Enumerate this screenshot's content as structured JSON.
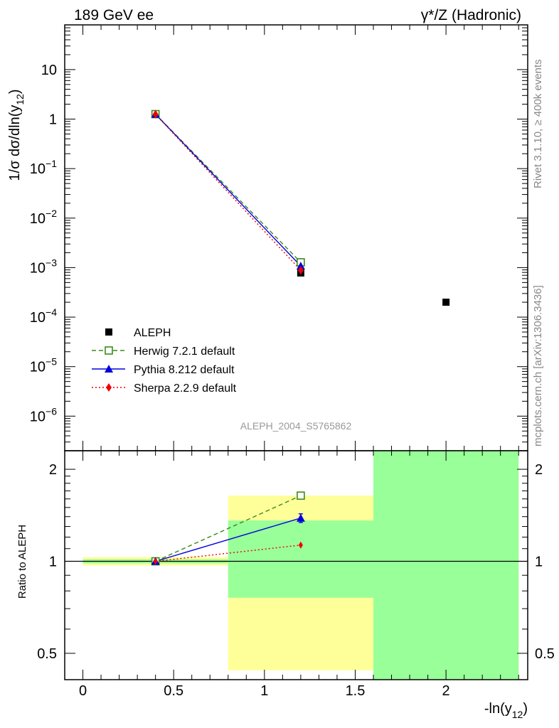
{
  "header": {
    "left": "189 GeV ee",
    "right": "γ*/Z (Hadronic)"
  },
  "side_text": {
    "rivet": "Rivet 3.1.10, ≥ 400k events",
    "mcplots": "mcplots.cern.ch [arXiv:1306.3436]"
  },
  "watermark": "ALEPH_2004_S5765862",
  "colors": {
    "data": "#000000",
    "herwig": "#3a8a1a",
    "pythia": "#0000dd",
    "sherpa": "#ee0000",
    "band_yellow": "#ffff99",
    "band_green": "#99ff99"
  },
  "chart_data": [
    {
      "name": "main",
      "type": "scatter",
      "yscale": "log",
      "ylabel_main": "1/σ  dσ/dln(y",
      "ylabel_sub": "12",
      "ylabel_end": ")",
      "xlim": [
        -0.1,
        2.45
      ],
      "ylim": [
        2e-07,
        80
      ],
      "yticks": [
        {
          "value": 10,
          "base": "10",
          "exp": ""
        },
        {
          "value": 1,
          "base": "1",
          "exp": ""
        },
        {
          "value": 0.1,
          "base": "10",
          "exp": "−1"
        },
        {
          "value": 0.01,
          "base": "10",
          "exp": "−2"
        },
        {
          "value": 0.001,
          "base": "10",
          "exp": "−3"
        },
        {
          "value": 0.0001,
          "base": "10",
          "exp": "−4"
        },
        {
          "value": 1e-05,
          "base": "10",
          "exp": "−5"
        },
        {
          "value": 1e-06,
          "base": "10",
          "exp": "−6"
        }
      ],
      "legend": [
        {
          "key": "data",
          "label": "ALEPH",
          "marker": "square-filled"
        },
        {
          "key": "herwig",
          "label": "Herwig 7.2.1 default",
          "marker": "square-open",
          "dash": "dashed"
        },
        {
          "key": "pythia",
          "label": "Pythia 8.212 default",
          "marker": "triangle",
          "dash": "solid"
        },
        {
          "key": "sherpa",
          "label": "Sherpa 2.2.9 default",
          "marker": "diamond",
          "dash": "dotted"
        }
      ],
      "series": [
        {
          "key": "data",
          "x": [
            0.4,
            1.2,
            2.0
          ],
          "y": [
            1.25,
            0.00078,
            0.0002
          ]
        },
        {
          "key": "herwig",
          "x": [
            0.4,
            1.2
          ],
          "y": [
            1.26,
            0.00128
          ]
        },
        {
          "key": "pythia",
          "x": [
            0.4,
            1.2
          ],
          "y": [
            1.255,
            0.00108
          ]
        },
        {
          "key": "sherpa",
          "x": [
            0.4,
            1.2
          ],
          "y": [
            1.25,
            0.00088
          ]
        }
      ]
    },
    {
      "name": "ratio",
      "type": "scatter",
      "yscale": "log",
      "ylabel": "Ratio to ALEPH",
      "xlabel_main": "-ln(y",
      "xlabel_sub": "12",
      "xlabel_end": ")",
      "xlim": [
        -0.1,
        2.45
      ],
      "ylim": [
        0.41,
        2.3
      ],
      "xticks": [
        {
          "value": 0,
          "label": "0"
        },
        {
          "value": 0.5,
          "label": "0.5"
        },
        {
          "value": 1,
          "label": "1"
        },
        {
          "value": 1.5,
          "label": "1.5"
        },
        {
          "value": 2,
          "label": "2"
        }
      ],
      "yticks": [
        {
          "value": 0.5,
          "label": "0.5"
        },
        {
          "value": 1,
          "label": "1"
        },
        {
          "value": 2,
          "label": "2"
        }
      ],
      "bands": [
        {
          "x0": 0.0,
          "x1": 0.8,
          "yellow": [
            0.968,
            1.032
          ],
          "green": [
            0.985,
            1.015
          ]
        },
        {
          "x0": 0.8,
          "x1": 1.6,
          "yellow": [
            0.44,
            1.64
          ],
          "green": [
            0.76,
            1.36
          ]
        },
        {
          "x0": 1.6,
          "x1": 2.4,
          "yellow": [
            0.41,
            2.3
          ],
          "green": [
            0.41,
            2.3
          ]
        }
      ],
      "series": [
        {
          "key": "herwig",
          "x": [
            0.4,
            1.2
          ],
          "y": [
            1.0,
            1.64
          ]
        },
        {
          "key": "pythia",
          "x": [
            0.4,
            1.2
          ],
          "y": [
            1.0,
            1.385
          ],
          "err": [
            0.01,
            0.045
          ]
        },
        {
          "key": "sherpa",
          "x": [
            0.4,
            1.2
          ],
          "y": [
            1.0,
            1.13
          ]
        }
      ]
    }
  ]
}
